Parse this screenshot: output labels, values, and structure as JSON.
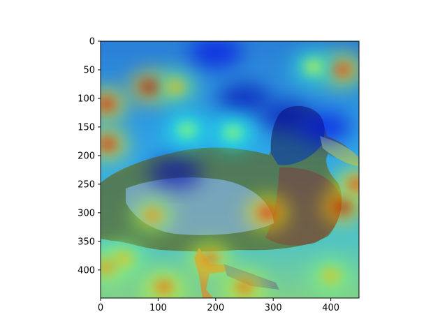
{
  "chart_data": {
    "type": "heatmap",
    "title": "",
    "xlabel": "",
    "ylabel": "",
    "xlim": [
      0,
      449
    ],
    "ylim": [
      449,
      0
    ],
    "x_ticks": [
      0,
      100,
      200,
      300,
      400
    ],
    "y_ticks": [
      0,
      50,
      100,
      150,
      200,
      250,
      300,
      350,
      400
    ],
    "x_tick_labels": [
      "0",
      "100",
      "200",
      "300",
      "400"
    ],
    "y_tick_labels": [
      "0",
      "50",
      "100",
      "150",
      "200",
      "250",
      "300",
      "350",
      "400"
    ],
    "colormap": "jet",
    "background_subject": "mallard-duck-photo",
    "hotspots": [
      {
        "x": 85,
        "y": 80,
        "intensity": 0.95
      },
      {
        "x": 130,
        "y": 80,
        "intensity": 0.7
      },
      {
        "x": 10,
        "y": 110,
        "intensity": 0.9
      },
      {
        "x": 12,
        "y": 180,
        "intensity": 0.9
      },
      {
        "x": 420,
        "y": 50,
        "intensity": 0.85
      },
      {
        "x": 370,
        "y": 45,
        "intensity": 0.6
      },
      {
        "x": 290,
        "y": 300,
        "intensity": 0.9
      },
      {
        "x": 420,
        "y": 290,
        "intensity": 0.95
      },
      {
        "x": 445,
        "y": 250,
        "intensity": 0.85
      },
      {
        "x": 90,
        "y": 305,
        "intensity": 0.75
      },
      {
        "x": 190,
        "y": 380,
        "intensity": 0.8
      },
      {
        "x": 40,
        "y": 380,
        "intensity": 0.7
      },
      {
        "x": 10,
        "y": 395,
        "intensity": 0.75
      },
      {
        "x": 110,
        "y": 430,
        "intensity": 0.8
      },
      {
        "x": 250,
        "y": 430,
        "intensity": 0.8
      },
      {
        "x": 400,
        "y": 410,
        "intensity": 0.7
      },
      {
        "x": 230,
        "y": 160,
        "intensity": 0.55
      },
      {
        "x": 150,
        "y": 155,
        "intensity": 0.55
      }
    ],
    "cool_regions": [
      {
        "x": 250,
        "y": 100,
        "intensity": 0.05
      },
      {
        "x": 320,
        "y": 130,
        "intensity": 0.05
      },
      {
        "x": 200,
        "y": 20,
        "intensity": 0.1
      },
      {
        "x": 130,
        "y": 230,
        "intensity": 0.05
      },
      {
        "x": 390,
        "y": 150,
        "intensity": 0.1
      }
    ],
    "colors": {
      "axes": "#000000",
      "background": "#ffffff"
    }
  }
}
